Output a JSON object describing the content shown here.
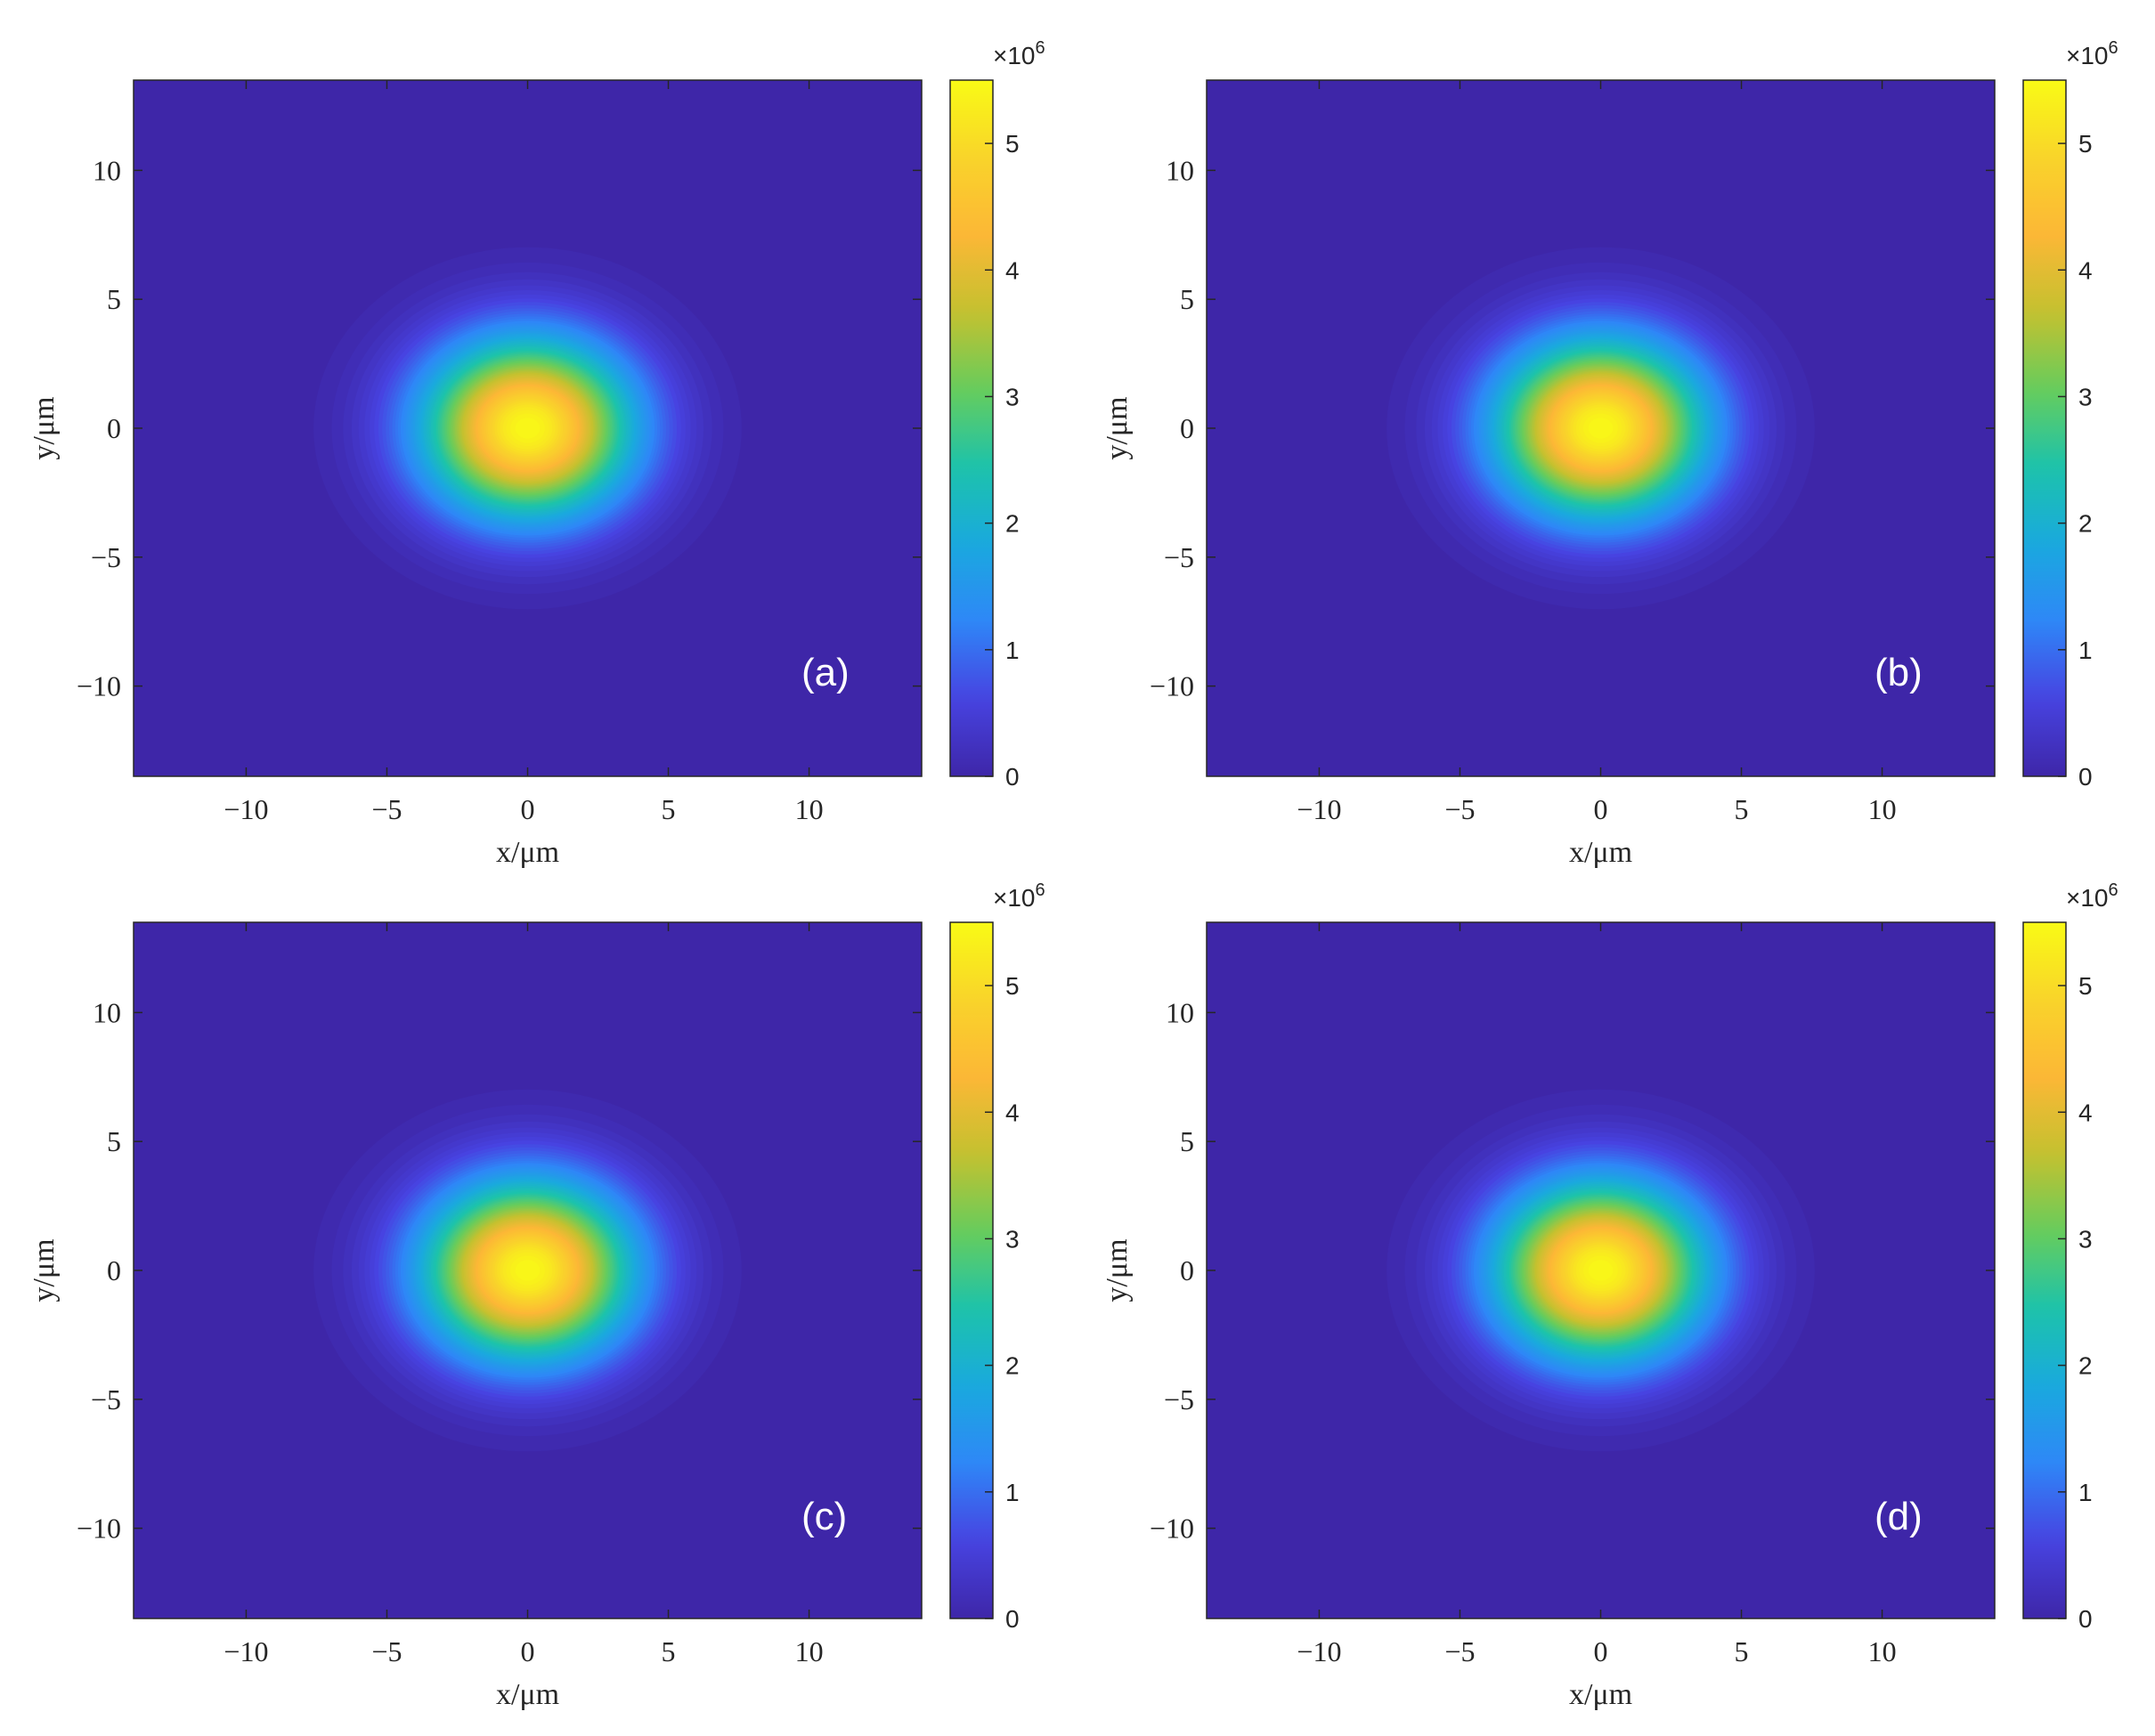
{
  "chart_data": [
    {
      "type": "heatmap",
      "panel_label": "(a)",
      "xlabel": "x/μm",
      "ylabel": "y/μm",
      "xlim": [
        -14,
        14
      ],
      "ylim": [
        -13.5,
        13.5
      ],
      "xticks": [
        -10,
        -5,
        0,
        5,
        10
      ],
      "yticks": [
        -10,
        -5,
        0,
        5,
        10
      ],
      "xtick_labels": [
        "−10",
        "−5",
        "0",
        "5",
        "10"
      ],
      "ytick_labels": [
        "−10",
        "−5",
        "0",
        "5",
        "10"
      ],
      "colorbar": {
        "ticks": [
          0,
          1,
          2,
          3,
          4,
          5
        ],
        "tick_labels": [
          "0",
          "1",
          "2",
          "3",
          "4",
          "5"
        ],
        "exponent_label": "×10",
        "exponent": "6",
        "limits": [
          0,
          5.5
        ]
      },
      "field": {
        "shape": "gaussian",
        "center": [
          0,
          0
        ],
        "peak": 5.5,
        "sigma_x": 2.6,
        "sigma_y": 2.4,
        "levels": 12
      }
    },
    {
      "type": "heatmap",
      "panel_label": "(b)",
      "xlabel": "x/μm",
      "ylabel": "y/μm",
      "xlim": [
        -14,
        14
      ],
      "ylim": [
        -13.5,
        13.5
      ],
      "xticks": [
        -10,
        -5,
        0,
        5,
        10
      ],
      "yticks": [
        -10,
        -5,
        0,
        5,
        10
      ],
      "xtick_labels": [
        "−10",
        "−5",
        "0",
        "5",
        "10"
      ],
      "ytick_labels": [
        "−10",
        "−5",
        "0",
        "5",
        "10"
      ],
      "colorbar": {
        "ticks": [
          0,
          1,
          2,
          3,
          4,
          5
        ],
        "tick_labels": [
          "0",
          "1",
          "2",
          "3",
          "4",
          "5"
        ],
        "exponent_label": "×10",
        "exponent": "6",
        "limits": [
          0,
          5.5
        ]
      },
      "field": {
        "shape": "gaussian",
        "center": [
          0,
          0
        ],
        "peak": 5.5,
        "sigma_x": 2.6,
        "sigma_y": 2.4,
        "levels": 12
      }
    },
    {
      "type": "heatmap",
      "panel_label": "(c)",
      "xlabel": "x/μm",
      "ylabel": "y/μm",
      "xlim": [
        -14,
        14
      ],
      "ylim": [
        -13.5,
        13.5
      ],
      "xticks": [
        -10,
        -5,
        0,
        5,
        10
      ],
      "yticks": [
        -10,
        -5,
        0,
        5,
        10
      ],
      "xtick_labels": [
        "−10",
        "−5",
        "0",
        "5",
        "10"
      ],
      "ytick_labels": [
        "−10",
        "−5",
        "0",
        "5",
        "10"
      ],
      "colorbar": {
        "ticks": [
          0,
          1,
          2,
          3,
          4,
          5
        ],
        "tick_labels": [
          "0",
          "1",
          "2",
          "3",
          "4",
          "5"
        ],
        "exponent_label": "×10",
        "exponent": "6",
        "limits": [
          0,
          5.5
        ]
      },
      "field": {
        "shape": "gaussian",
        "center": [
          0,
          0
        ],
        "peak": 5.5,
        "sigma_x": 2.6,
        "sigma_y": 2.4,
        "levels": 12
      }
    },
    {
      "type": "heatmap",
      "panel_label": "(d)",
      "xlabel": "x/μm",
      "ylabel": "y/μm",
      "xlim": [
        -14,
        14
      ],
      "ylim": [
        -13.5,
        13.5
      ],
      "xticks": [
        -10,
        -5,
        0,
        5,
        10
      ],
      "yticks": [
        -10,
        -5,
        0,
        5,
        10
      ],
      "xtick_labels": [
        "−10",
        "−5",
        "0",
        "5",
        "10"
      ],
      "ytick_labels": [
        "−10",
        "−5",
        "0",
        "5",
        "10"
      ],
      "colorbar": {
        "ticks": [
          0,
          1,
          2,
          3,
          4,
          5
        ],
        "tick_labels": [
          "0",
          "1",
          "2",
          "3",
          "4",
          "5"
        ],
        "exponent_label": "×10",
        "exponent": "6",
        "limits": [
          0,
          5.5
        ]
      },
      "field": {
        "shape": "gaussian",
        "center": [
          0,
          0
        ],
        "peak": 5.5,
        "sigma_x": 2.6,
        "sigma_y": 2.4,
        "levels": 12
      }
    }
  ],
  "colormap": {
    "name": "parula",
    "stops": [
      "#3e26a8",
      "#4743e1",
      "#2e87f7",
      "#1aa9de",
      "#1cc3ab",
      "#67cc5c",
      "#c4c12f",
      "#fcb736",
      "#f9d42a",
      "#f9fb15"
    ]
  }
}
